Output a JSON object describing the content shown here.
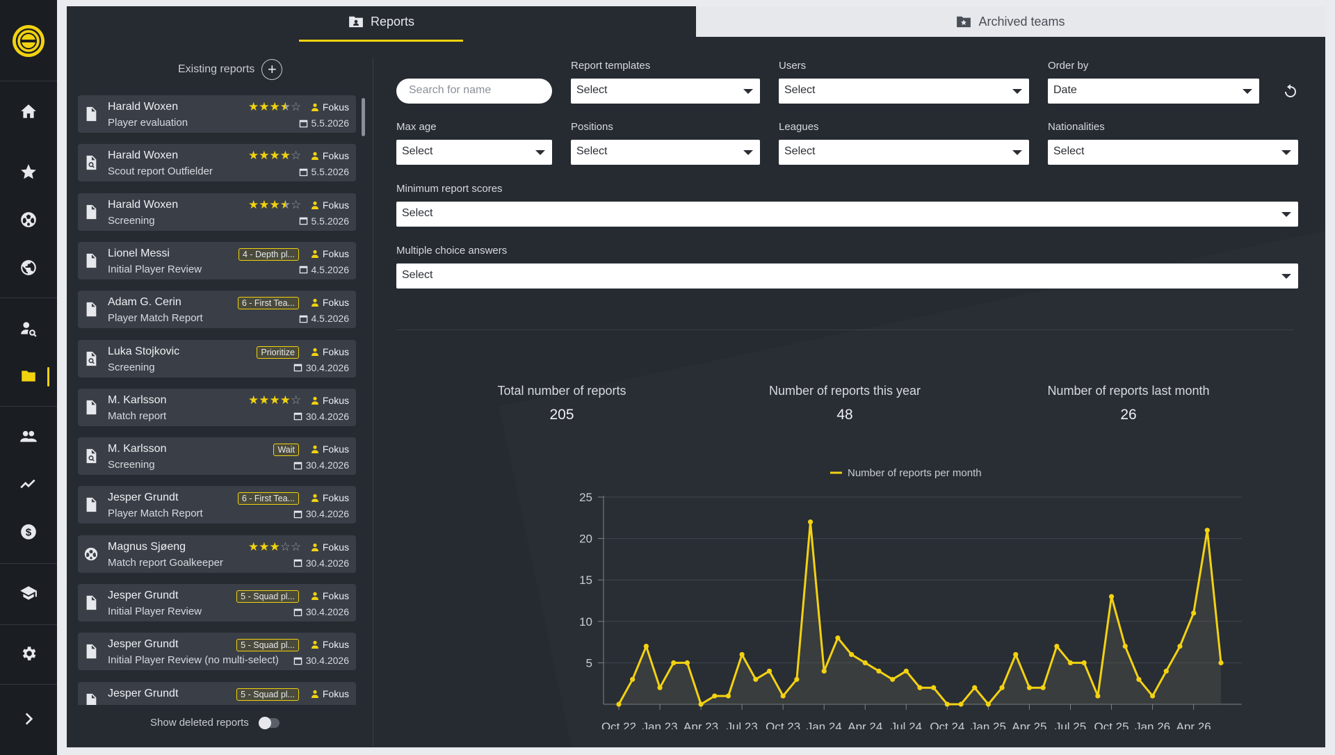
{
  "tabs": {
    "reports": "Reports",
    "archived": "Archived teams"
  },
  "list": {
    "heading": "Existing reports",
    "show_deleted": "Show deleted reports",
    "reports": [
      {
        "name": "Harald Woxen",
        "type": "Player evaluation",
        "rating": 3.5,
        "badge": "",
        "user": "Fokus",
        "date": "5.5.2026",
        "icon": "document-icon"
      },
      {
        "name": "Harald Woxen",
        "type": "Scout report Outfielder",
        "rating": 4,
        "badge": "",
        "user": "Fokus",
        "date": "5.5.2026",
        "icon": "document-search-icon"
      },
      {
        "name": "Harald Woxen",
        "type": "Screening",
        "rating": 3.5,
        "badge": "",
        "user": "Fokus",
        "date": "5.5.2026",
        "icon": "document-icon"
      },
      {
        "name": "Lionel Messi",
        "type": "Initial Player Review",
        "rating": null,
        "badge": "4 - Depth pl...",
        "user": "Fokus",
        "date": "4.5.2026",
        "icon": "document-icon"
      },
      {
        "name": "Adam G. Cerin",
        "type": "Player Match Report",
        "rating": null,
        "badge": "6 - First Tea...",
        "user": "Fokus",
        "date": "4.5.2026",
        "icon": "document-icon"
      },
      {
        "name": "Luka Stojkovic",
        "type": "Screening",
        "rating": null,
        "badge": "Prioritize",
        "user": "Fokus",
        "date": "30.4.2026",
        "icon": "document-search-icon"
      },
      {
        "name": "M. Karlsson",
        "type": "Match report",
        "rating": 4,
        "badge": "",
        "user": "Fokus",
        "date": "30.4.2026",
        "icon": "document-icon"
      },
      {
        "name": "M. Karlsson",
        "type": "Screening",
        "rating": null,
        "badge": "Wait",
        "user": "Fokus",
        "date": "30.4.2026",
        "icon": "document-search-icon"
      },
      {
        "name": "Jesper Grundt",
        "type": "Player Match Report",
        "rating": null,
        "badge": "6 - First Tea...",
        "user": "Fokus",
        "date": "30.4.2026",
        "icon": "document-icon"
      },
      {
        "name": "Magnus Sjøeng",
        "type": "Match report Goalkeeper",
        "rating": 3,
        "badge": "",
        "user": "Fokus",
        "date": "30.4.2026",
        "icon": "football-icon"
      },
      {
        "name": "Jesper Grundt",
        "type": "Initial Player Review",
        "rating": null,
        "badge": "5 - Squad pl...",
        "user": "Fokus",
        "date": "30.4.2026",
        "icon": "document-icon"
      },
      {
        "name": "Jesper Grundt",
        "type": "Initial Player Review (no multi-select)",
        "rating": null,
        "badge": "5 - Squad pl...",
        "user": "Fokus",
        "date": "30.4.2026",
        "icon": "document-icon"
      },
      {
        "name": "Jesper Grundt",
        "type": "Initial Player Review",
        "rating": null,
        "badge": "5 - Squad pl...",
        "user": "Fokus",
        "date": "30.4.2026",
        "icon": "document-icon"
      }
    ]
  },
  "filters": {
    "search_placeholder": "Search for name",
    "report_templates": {
      "label": "Report templates",
      "value": "Select"
    },
    "users": {
      "label": "Users",
      "value": "Select"
    },
    "order_by": {
      "label": "Order by",
      "value": "Date"
    },
    "max_age": {
      "label": "Max age",
      "value": "Select"
    },
    "positions": {
      "label": "Positions",
      "value": "Select"
    },
    "leagues": {
      "label": "Leagues",
      "value": "Select"
    },
    "nationalities": {
      "label": "Nationalities",
      "value": "Select"
    },
    "min_scores": {
      "label": "Minimum report scores",
      "value": "Select"
    },
    "mc_answers": {
      "label": "Multiple choice answers",
      "value": "Select"
    }
  },
  "stats": {
    "total": {
      "label": "Total number of reports",
      "value": "205"
    },
    "year": {
      "label": "Number of reports this year",
      "value": "48"
    },
    "month": {
      "label": "Number of reports last month",
      "value": "26"
    }
  },
  "colors": {
    "accent": "#f2d20f",
    "panel": "#262a31",
    "card": "#3a3f47"
  },
  "chart_data": {
    "type": "line",
    "legend": "Number of reports per month",
    "legend_position": "top",
    "x_tick_labels": [
      "Oct 22",
      "Jan 23",
      "Apr 23",
      "Jul 23",
      "Oct 23",
      "Jan 24",
      "Apr 24",
      "Jul 24",
      "Oct 24",
      "Jan 25",
      "Apr 25",
      "Jul 25",
      "Oct 25",
      "Jan 26",
      "Apr 26"
    ],
    "ylim": [
      0,
      25
    ],
    "y_ticks": [
      5,
      10,
      15,
      20,
      25
    ],
    "grid": true,
    "series": [
      {
        "name": "Number of reports per month",
        "values": [
          0,
          3,
          7,
          2,
          5,
          5,
          0,
          1,
          1,
          6,
          3,
          4,
          1,
          3,
          22,
          4,
          8,
          6,
          5,
          4,
          3,
          4,
          2,
          2,
          0,
          0,
          2,
          0,
          2,
          6,
          2,
          2,
          7,
          5,
          5,
          1,
          13,
          7,
          3,
          1,
          4,
          7,
          11,
          21,
          5
        ]
      }
    ]
  }
}
